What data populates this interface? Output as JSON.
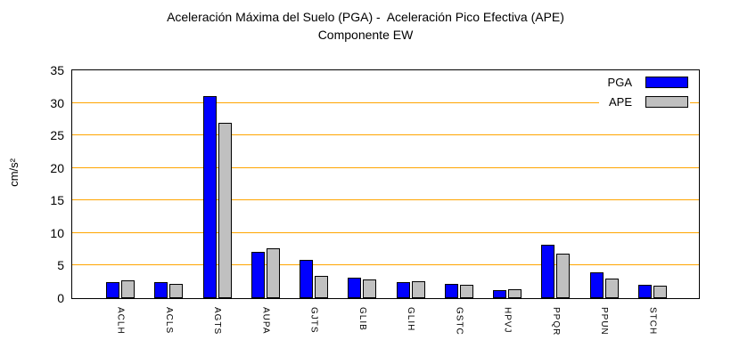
{
  "title": {
    "line1": "Aceleración Máxima del Suelo (PGA) -  Aceleración Pico Efectiva (APE)",
    "line2": "Componente EW"
  },
  "axes": {
    "y_label": "cm/s²"
  },
  "colors": {
    "background": "#ffffff",
    "border": "#000000",
    "grid": "#ffa500",
    "pga": "#0000ff",
    "ape": "#c0c0c0"
  },
  "chart_data": {
    "type": "bar",
    "title": "Aceleración Máxima del Suelo (PGA) -  Aceleración Pico Efectiva (APE)",
    "subtitle": "Componente EW",
    "xlabel": "",
    "ylabel": "cm/s²",
    "ylim": [
      0,
      35
    ],
    "yticks": [
      0,
      5,
      10,
      15,
      20,
      25,
      30,
      35
    ],
    "gridlines": [
      5,
      10,
      15,
      20,
      25,
      30
    ],
    "grid": true,
    "legend_position": "top-right",
    "categories": [
      "ACLH",
      "ACLS",
      "AGTS",
      "AUPA",
      "GJTS",
      "GLIB",
      "GLIH",
      "GSTC",
      "HPVJ",
      "PPQR",
      "PPUN",
      "STCH"
    ],
    "series": [
      {
        "name": "PGA",
        "color": "#0000ff",
        "values": [
          2.4,
          2.4,
          31.0,
          7.1,
          5.9,
          3.2,
          2.5,
          2.2,
          1.2,
          8.2,
          4.0,
          2.1
        ]
      },
      {
        "name": "APE",
        "color": "#c0c0c0",
        "values": [
          2.7,
          2.2,
          27.0,
          7.7,
          3.4,
          2.9,
          2.6,
          2.1,
          1.4,
          6.9,
          3.0,
          1.9
        ]
      }
    ]
  }
}
